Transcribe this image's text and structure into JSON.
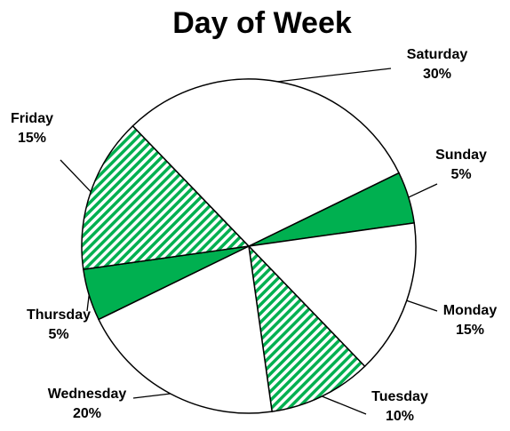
{
  "chart_data": {
    "type": "pie",
    "title": "Day of Week",
    "categories": [
      "Sunday",
      "Monday",
      "Tuesday",
      "Wednesday",
      "Thursday",
      "Friday",
      "Saturday"
    ],
    "values": [
      5,
      15,
      10,
      20,
      5,
      15,
      30
    ],
    "value_labels": [
      "5%",
      "15%",
      "10%",
      "20%",
      "5%",
      "15%",
      "30%"
    ],
    "colors": [
      "#00b050",
      "#ffffff",
      "#00b050",
      "#ffffff",
      "#00b050",
      "#00b050",
      "#ffffff"
    ],
    "hatched": [
      false,
      false,
      true,
      false,
      false,
      true,
      false
    ]
  }
}
